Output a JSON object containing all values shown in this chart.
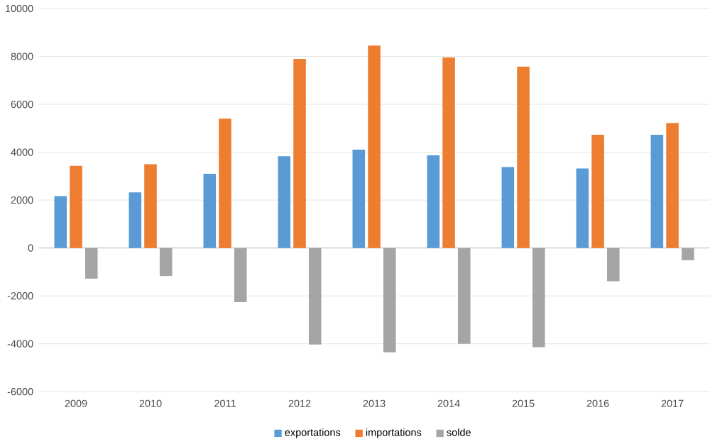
{
  "chart_data": {
    "type": "bar",
    "categories": [
      "2009",
      "2010",
      "2011",
      "2012",
      "2013",
      "2014",
      "2015",
      "2016",
      "2017"
    ],
    "series": [
      {
        "name": "exportations",
        "color": "#5b9bd5",
        "values": [
          2170,
          2320,
          3100,
          3830,
          4110,
          3870,
          3380,
          3320,
          4730
        ]
      },
      {
        "name": "importations",
        "color": "#ed7d31",
        "values": [
          3430,
          3500,
          5400,
          7900,
          8450,
          7960,
          7570,
          4730,
          5220
        ]
      },
      {
        "name": "solde",
        "color": "#a5a5a5",
        "values": [
          -1280,
          -1170,
          -2260,
          -4030,
          -4360,
          -4000,
          -4140,
          -1390,
          -510
        ]
      }
    ],
    "ylim": [
      -6000,
      10000
    ],
    "yticks": [
      -6000,
      -4000,
      -2000,
      0,
      2000,
      4000,
      6000,
      8000,
      10000
    ],
    "grid": "y",
    "legend": "bottom"
  }
}
